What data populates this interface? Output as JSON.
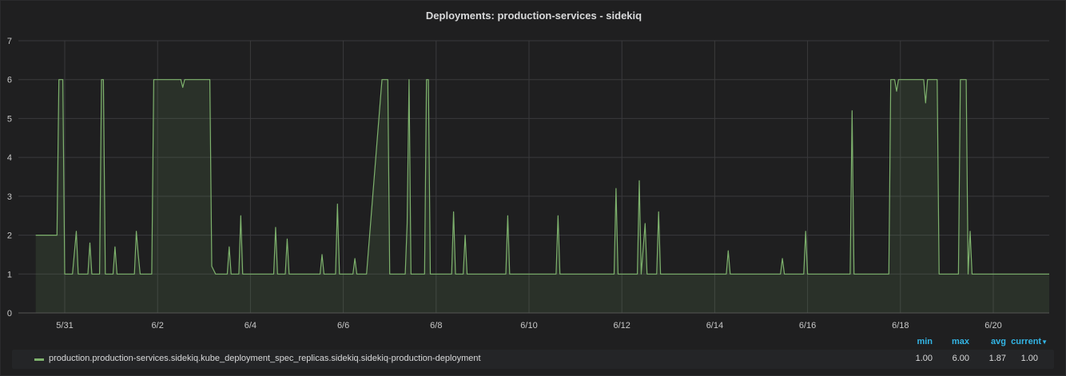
{
  "panel": {
    "title": "Deployments: production-services - sidekiq"
  },
  "legend": {
    "headers": {
      "min": "min",
      "max": "max",
      "avg": "avg",
      "current": "current"
    },
    "sort_icon": "caret-down-icon",
    "series_name": "production.production-services.sidekiq.kube_deployment_spec_replicas.sidekiq.sidekiq-production-deployment",
    "min": "1.00",
    "max": "6.00",
    "avg": "1.87",
    "current": "1.00"
  },
  "colors": {
    "series": "#7eb26d",
    "fill": "#2b2f2a",
    "grid": "#3a3a3c",
    "axis_text": "#c8c8c8",
    "legend_header": "#33b5e5"
  },
  "chart_data": {
    "type": "area",
    "title": "Deployments: production-services - sidekiq",
    "xlabel": "",
    "ylabel": "",
    "ylim": [
      0,
      7
    ],
    "y_ticks": [
      "0",
      "1",
      "2",
      "3",
      "4",
      "5",
      "6",
      "7"
    ],
    "x_range_days": "2018-05-30 to 2018-06-21",
    "x_ticks": [
      {
        "label": "5/31",
        "date": "2018-05-31"
      },
      {
        "label": "6/2",
        "date": "2018-06-02"
      },
      {
        "label": "6/4",
        "date": "2018-06-04"
      },
      {
        "label": "6/6",
        "date": "2018-06-06"
      },
      {
        "label": "6/8",
        "date": "2018-06-08"
      },
      {
        "label": "6/10",
        "date": "2018-06-10"
      },
      {
        "label": "6/12",
        "date": "2018-06-12"
      },
      {
        "label": "6/14",
        "date": "2018-06-14"
      },
      {
        "label": "6/16",
        "date": "2018-06-16"
      },
      {
        "label": "6/18",
        "date": "2018-06-18"
      },
      {
        "label": "6/20",
        "date": "2018-06-20"
      }
    ],
    "grid": true,
    "legend_position": "bottom",
    "series": [
      {
        "name": "production.production-services.sidekiq.kube_deployment_spec_replicas.sidekiq.sidekiq-production-deployment",
        "points": [
          [
            "2018-05-30 09:00",
            2
          ],
          [
            "2018-05-30 20:00",
            2
          ],
          [
            "2018-05-30 21:00",
            6
          ],
          [
            "2018-05-30 23:00",
            6
          ],
          [
            "2018-05-31 00:00",
            1
          ],
          [
            "2018-05-31 04:00",
            1
          ],
          [
            "2018-05-31 06:00",
            2.1
          ],
          [
            "2018-05-31 07:00",
            1
          ],
          [
            "2018-05-31 12:00",
            1
          ],
          [
            "2018-05-31 13:00",
            1.8
          ],
          [
            "2018-05-31 14:00",
            1
          ],
          [
            "2018-05-31 18:00",
            1
          ],
          [
            "2018-05-31 19:00",
            6
          ],
          [
            "2018-05-31 20:00",
            6
          ],
          [
            "2018-05-31 21:00",
            1
          ],
          [
            "2018-06-01 01:00",
            1
          ],
          [
            "2018-06-01 02:00",
            1.7
          ],
          [
            "2018-06-01 03:00",
            1
          ],
          [
            "2018-06-01 12:00",
            1
          ],
          [
            "2018-06-01 13:00",
            2.1
          ],
          [
            "2018-06-01 14:00",
            1.5
          ],
          [
            "2018-06-01 15:00",
            1
          ],
          [
            "2018-06-01 21:00",
            1
          ],
          [
            "2018-06-01 22:00",
            6
          ],
          [
            "2018-06-02 12:00",
            6
          ],
          [
            "2018-06-02 13:00",
            5.8
          ],
          [
            "2018-06-02 14:00",
            6
          ],
          [
            "2018-06-03 03:00",
            6
          ],
          [
            "2018-06-03 04:00",
            1.2
          ],
          [
            "2018-06-03 06:00",
            1
          ],
          [
            "2018-06-03 12:00",
            1
          ],
          [
            "2018-06-03 13:00",
            1.7
          ],
          [
            "2018-06-03 14:00",
            1
          ],
          [
            "2018-06-03 18:00",
            1
          ],
          [
            "2018-06-03 19:00",
            2.5
          ],
          [
            "2018-06-03 20:00",
            1
          ],
          [
            "2018-06-04 12:00",
            1
          ],
          [
            "2018-06-04 13:00",
            2.2
          ],
          [
            "2018-06-04 14:00",
            1
          ],
          [
            "2018-06-04 18:00",
            1
          ],
          [
            "2018-06-04 19:00",
            1.9
          ],
          [
            "2018-06-04 20:00",
            1
          ],
          [
            "2018-06-05 12:00",
            1
          ],
          [
            "2018-06-05 13:00",
            1.5
          ],
          [
            "2018-06-05 14:00",
            1
          ],
          [
            "2018-06-05 20:00",
            1
          ],
          [
            "2018-06-05 21:00",
            2.8
          ],
          [
            "2018-06-05 22:00",
            1
          ],
          [
            "2018-06-06 05:00",
            1
          ],
          [
            "2018-06-06 06:00",
            1.4
          ],
          [
            "2018-06-06 07:00",
            1
          ],
          [
            "2018-06-06 12:00",
            1
          ],
          [
            "2018-06-06 20:00",
            6
          ],
          [
            "2018-06-06 23:00",
            6
          ],
          [
            "2018-06-07 00:00",
            1
          ],
          [
            "2018-06-07 08:00",
            1
          ],
          [
            "2018-06-07 09:00",
            2.3
          ],
          [
            "2018-06-07 10:00",
            6
          ],
          [
            "2018-06-07 11:00",
            1
          ],
          [
            "2018-06-07 18:00",
            1
          ],
          [
            "2018-06-07 19:00",
            6
          ],
          [
            "2018-06-07 20:00",
            6
          ],
          [
            "2018-06-07 21:00",
            1
          ],
          [
            "2018-06-08 08:00",
            1
          ],
          [
            "2018-06-08 09:00",
            2.6
          ],
          [
            "2018-06-08 10:00",
            1
          ],
          [
            "2018-06-08 14:00",
            1
          ],
          [
            "2018-06-08 15:00",
            2
          ],
          [
            "2018-06-08 16:00",
            1
          ],
          [
            "2018-06-09 12:00",
            1
          ],
          [
            "2018-06-09 13:00",
            2.5
          ],
          [
            "2018-06-09 14:00",
            1
          ],
          [
            "2018-06-10 14:00",
            1
          ],
          [
            "2018-06-10 15:00",
            2.5
          ],
          [
            "2018-06-10 16:00",
            1
          ],
          [
            "2018-06-11 20:00",
            1
          ],
          [
            "2018-06-11 21:00",
            3.2
          ],
          [
            "2018-06-11 22:00",
            1
          ],
          [
            "2018-06-12 08:00",
            1
          ],
          [
            "2018-06-12 09:00",
            3.4
          ],
          [
            "2018-06-12 10:00",
            1
          ],
          [
            "2018-06-12 12:00",
            2.3
          ],
          [
            "2018-06-12 13:00",
            1
          ],
          [
            "2018-06-12 18:00",
            1
          ],
          [
            "2018-06-12 19:00",
            2.6
          ],
          [
            "2018-06-12 20:00",
            1
          ],
          [
            "2018-06-14 06:00",
            1
          ],
          [
            "2018-06-14 07:00",
            1.6
          ],
          [
            "2018-06-14 08:00",
            1
          ],
          [
            "2018-06-15 10:00",
            1
          ],
          [
            "2018-06-15 11:00",
            1.4
          ],
          [
            "2018-06-15 12:00",
            1
          ],
          [
            "2018-06-15 22:00",
            1
          ],
          [
            "2018-06-15 23:00",
            2.1
          ],
          [
            "2018-06-16 00:00",
            1
          ],
          [
            "2018-06-16 22:00",
            1
          ],
          [
            "2018-06-16 23:00",
            5.2
          ],
          [
            "2018-06-17 00:00",
            1
          ],
          [
            "2018-06-17 18:00",
            1
          ],
          [
            "2018-06-17 19:00",
            6
          ],
          [
            "2018-06-17 21:00",
            6
          ],
          [
            "2018-06-17 22:00",
            5.7
          ],
          [
            "2018-06-17 23:00",
            6
          ],
          [
            "2018-06-18 12:00",
            6
          ],
          [
            "2018-06-18 13:00",
            5.4
          ],
          [
            "2018-06-18 14:00",
            6
          ],
          [
            "2018-06-18 19:00",
            6
          ],
          [
            "2018-06-18 20:00",
            1
          ],
          [
            "2018-06-19 06:00",
            1
          ],
          [
            "2018-06-19 07:00",
            6
          ],
          [
            "2018-06-19 10:00",
            6
          ],
          [
            "2018-06-19 11:00",
            1
          ],
          [
            "2018-06-19 12:00",
            2.1
          ],
          [
            "2018-06-19 13:00",
            1
          ],
          [
            "2018-06-21 09:00",
            1
          ]
        ]
      }
    ]
  }
}
